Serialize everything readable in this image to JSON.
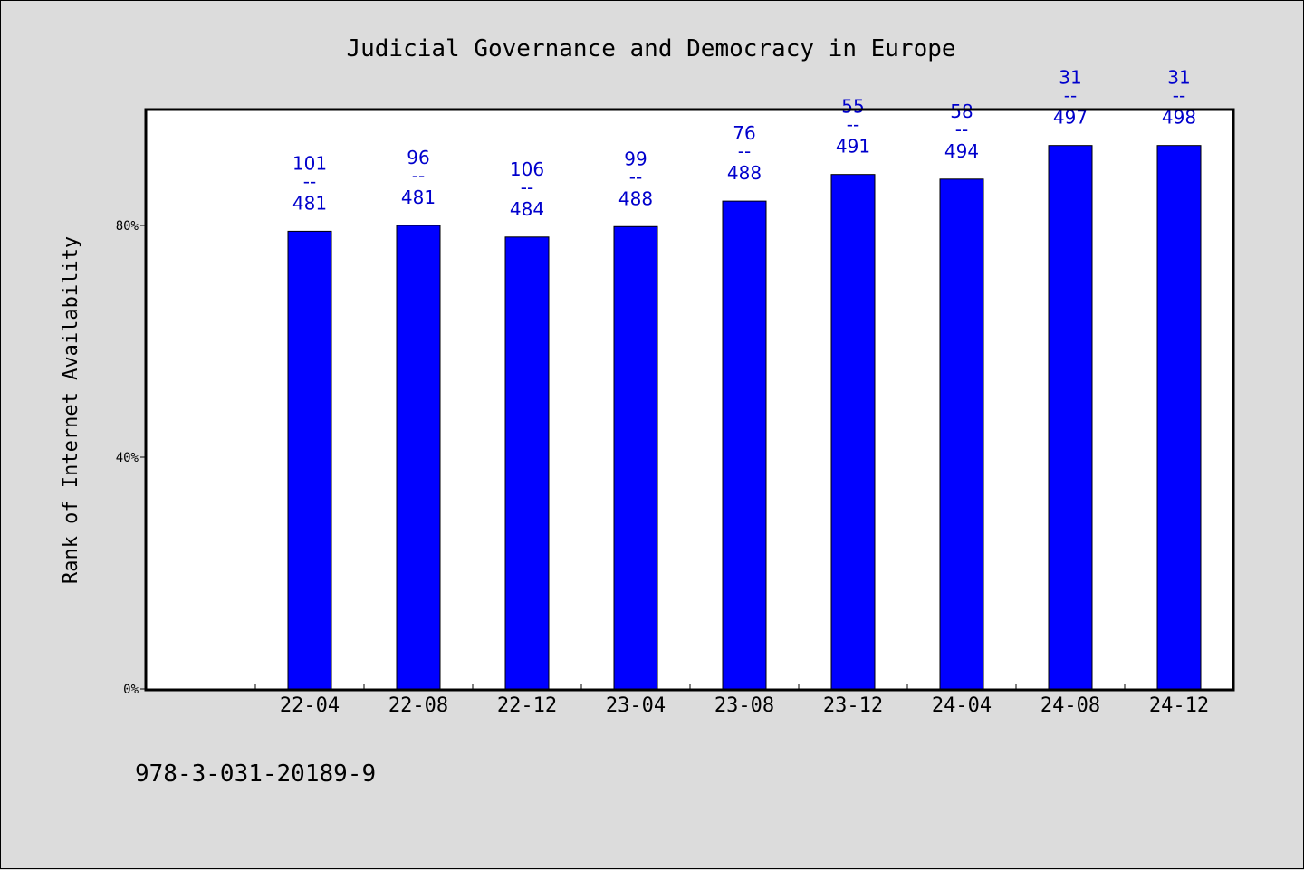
{
  "chart_data": {
    "type": "bar",
    "title": "Judicial Governance and Democracy in Europe",
    "xlabel": "",
    "ylabel": "Rank of Internet Availability",
    "categories": [
      "22-04",
      "22-08",
      "22-12",
      "23-04",
      "23-08",
      "23-12",
      "24-04",
      "24-08",
      "24-12"
    ],
    "values": [
      79.0,
      80.0,
      78.0,
      79.8,
      84.2,
      88.8,
      88.0,
      93.8,
      93.8
    ],
    "value_unit": "%",
    "data_labels": [
      {
        "top": "101",
        "sep": "--",
        "bottom": "481"
      },
      {
        "top": "96",
        "sep": "--",
        "bottom": "481"
      },
      {
        "top": "106",
        "sep": "--",
        "bottom": "484"
      },
      {
        "top": "99",
        "sep": "--",
        "bottom": "488"
      },
      {
        "top": "76",
        "sep": "--",
        "bottom": "488"
      },
      {
        "top": "55",
        "sep": "--",
        "bottom": "491"
      },
      {
        "top": "58",
        "sep": "--",
        "bottom": "494"
      },
      {
        "top": "31",
        "sep": "--",
        "bottom": "497"
      },
      {
        "top": "31",
        "sep": "--",
        "bottom": "498"
      }
    ],
    "ylim": [
      0,
      100
    ],
    "yticks": [
      {
        "value": 0,
        "label": "0%"
      },
      {
        "value": 40,
        "label": "40%"
      },
      {
        "value": 80,
        "label": "80%"
      }
    ],
    "grid": false,
    "bar_color": "#0000ff",
    "label_color": "#0000cc",
    "plot_background": "#ffffff",
    "page_background": "#dcdcdc"
  },
  "footer_text": "978-3-031-20189-9"
}
